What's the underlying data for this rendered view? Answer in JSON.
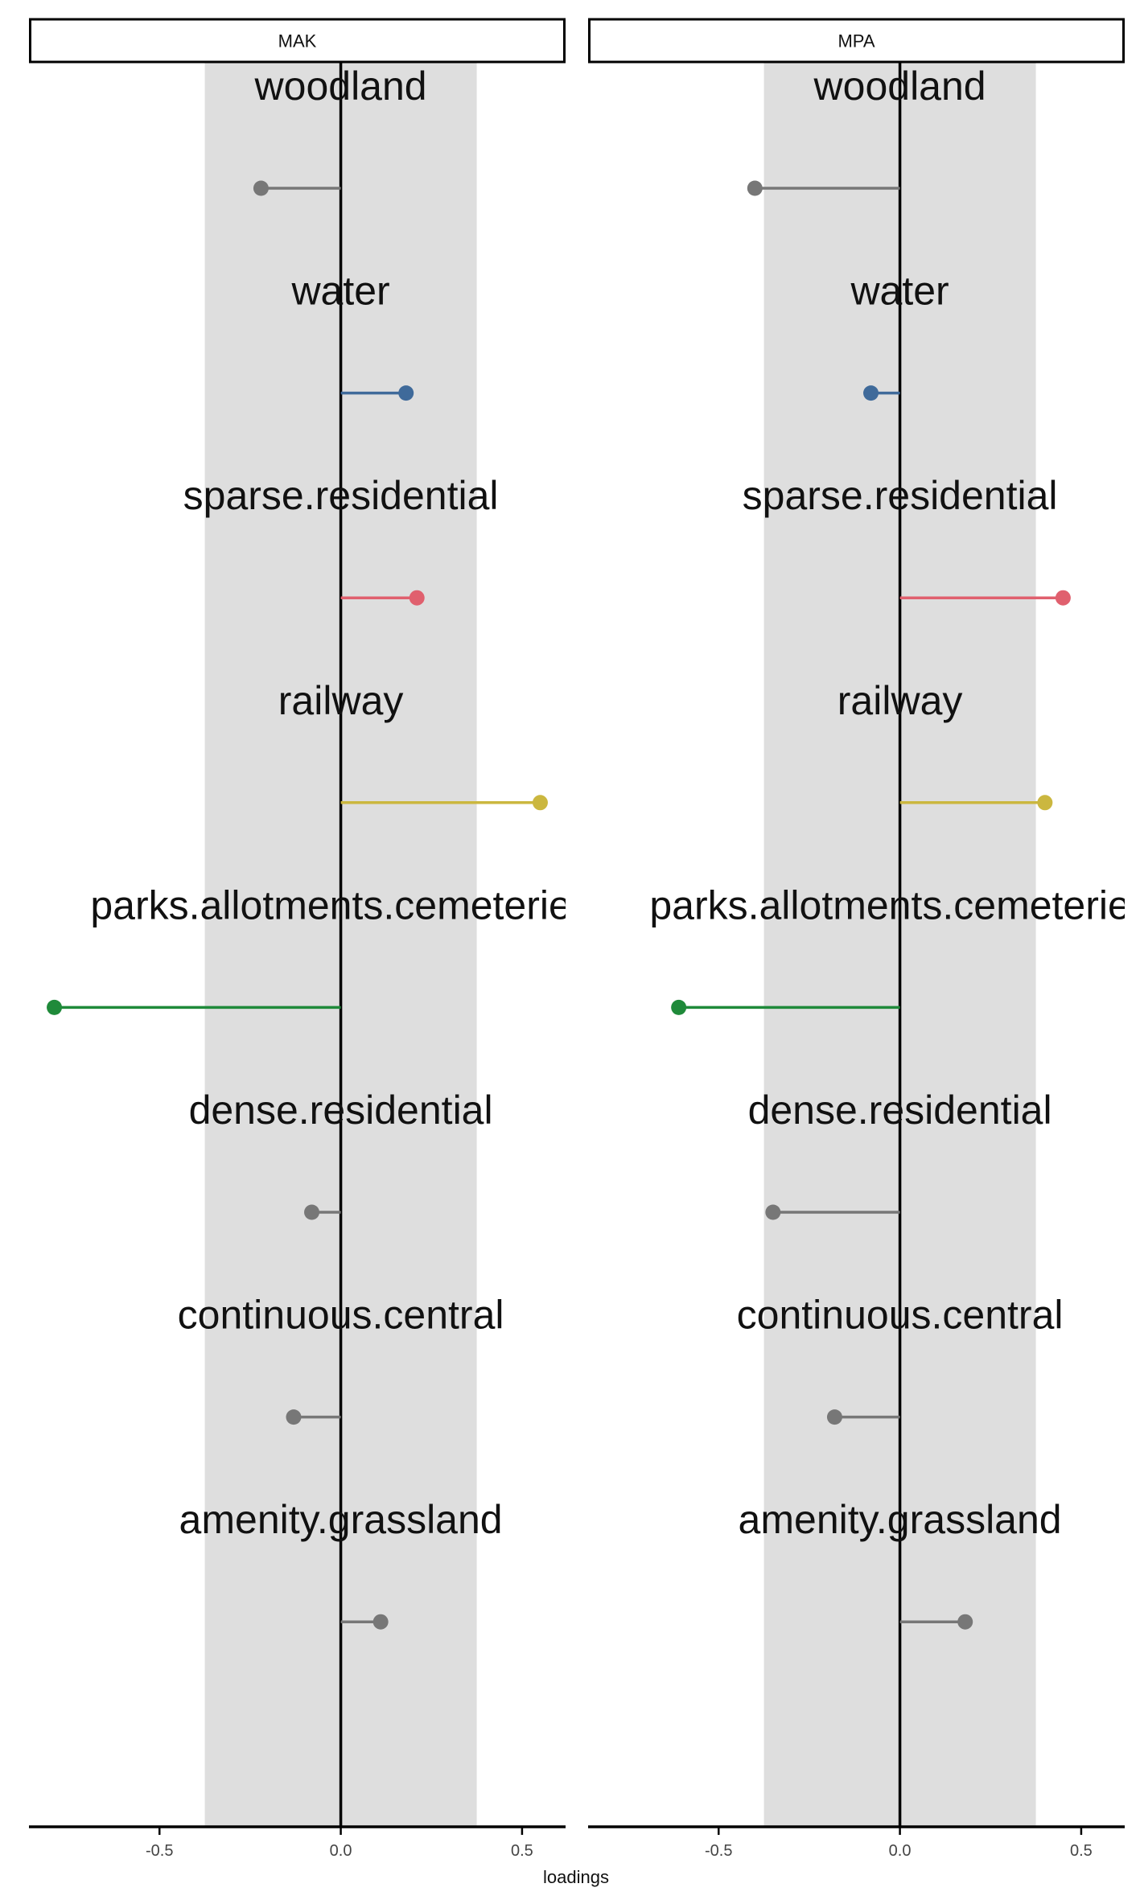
{
  "chart_data": {
    "type": "lollipop",
    "xlabel": "loadings",
    "xlim": [
      -0.86,
      0.62
    ],
    "x_ticks": [
      -0.5,
      0.0,
      0.5
    ],
    "x_tick_labels": [
      "-0.5",
      "0.0",
      "0.5"
    ],
    "shaded_band": [
      -0.375,
      0.375
    ],
    "categories": [
      "woodland",
      "water",
      "sparse.residential",
      "railway",
      "parks.allotments.cemeteries",
      "dense.residential",
      "continuous.central",
      "amenity.grassland"
    ],
    "colors": {
      "woodland": "#777777",
      "water": "#3f6a9a",
      "sparse.residential": "#e0606e",
      "railway": "#cbb73f",
      "parks.allotments.cemeteries": "#1f8a3a",
      "dense.residential": "#777777",
      "continuous.central": "#777777",
      "amenity.grassland": "#777777",
      "band": "#dedede",
      "axis": "#000000"
    },
    "panels": [
      {
        "name": "MAK",
        "values": [
          -0.22,
          0.18,
          0.21,
          0.55,
          -0.79,
          -0.08,
          -0.13,
          0.11
        ]
      },
      {
        "name": "MPA",
        "values": [
          -0.4,
          -0.08,
          0.45,
          0.4,
          -0.61,
          -0.35,
          -0.18,
          0.18
        ]
      }
    ]
  }
}
